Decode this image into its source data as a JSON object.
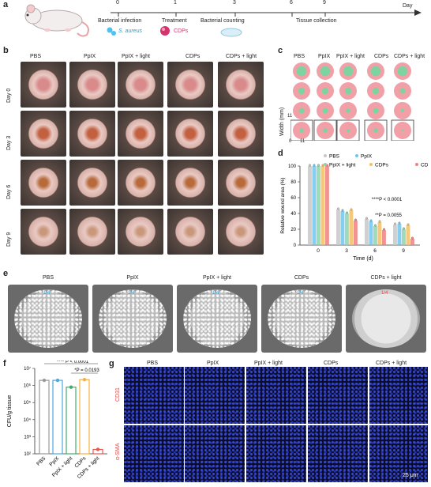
{
  "panel_a": {
    "letter": "a",
    "timeline_ticks": [
      "0",
      "1",
      "3",
      "6",
      "9"
    ],
    "axis_label": "Day",
    "events": [
      "Bacterial infection",
      "Treatment",
      "Bacterial counting",
      "Tissue collection"
    ],
    "species": "S. aureus",
    "agent": "CDPs"
  },
  "groups": [
    "PBS",
    "PpIX",
    "PpIX + light",
    "CDPs",
    "CDPs + light"
  ],
  "panel_b": {
    "letter": "b",
    "days": [
      "Day 0",
      "Day 3",
      "Day 6",
      "Day 9"
    ]
  },
  "panel_c": {
    "letter": "c",
    "ylabel": "Width (mm)",
    "tick_y": "11",
    "tick_origin": "0",
    "tick_x": "11"
  },
  "panel_d": {
    "letter": "d",
    "chart_data": {
      "type": "bar",
      "categories": [
        "0",
        "3",
        "6",
        "9"
      ],
      "series": [
        {
          "name": "PBS",
          "values": [
            100,
            45,
            33,
            26
          ]
        },
        {
          "name": "PpIX",
          "values": [
            100,
            43,
            30,
            27
          ]
        },
        {
          "name": "PpIX + light",
          "values": [
            100,
            40,
            24,
            20
          ]
        },
        {
          "name": "CDPs",
          "values": [
            100,
            44,
            29,
            25
          ]
        },
        {
          "name": "CDPs + light",
          "values": [
            100,
            31,
            19,
            8
          ]
        }
      ],
      "xlabel": "Time (d)",
      "ylabel": "Relative wound area (%)",
      "ylim": [
        0,
        100
      ],
      "yticks": [
        "0",
        "20",
        "40",
        "60",
        "80",
        "100"
      ],
      "colors": [
        "#c8c8c8",
        "#6ec6f0",
        "#8fd3b0",
        "#f5c060",
        "#f08080"
      ],
      "annotations": [
        "****P < 0.0001",
        "**P = 0.0055"
      ],
      "legend_position": "top-right"
    }
  },
  "panel_e": {
    "letter": "e",
    "dish_labels": [
      "1/4",
      "1/4",
      "1/4",
      "1/4",
      "1/4"
    ]
  },
  "panel_f": {
    "letter": "f",
    "chart_data": {
      "type": "bar",
      "categories": [
        "PBS",
        "PpIX",
        "PpIX + light",
        "CDPs",
        "CDPs + light"
      ],
      "values": [
        2000000,
        2000000,
        800000,
        2200000,
        180
      ],
      "ylabel": "CFU/g tissue",
      "yscale": "log",
      "ylim": [
        100,
        10000000
      ],
      "yticks": [
        "10²",
        "10³",
        "10⁴",
        "10⁵",
        "10⁶",
        "10⁷"
      ],
      "colors": [
        "#9a9a9a",
        "#4aa9e0",
        "#3fae6a",
        "#f5b040",
        "#e8584f"
      ],
      "annotations": [
        "**** P < 0.0001",
        "*P = 0.0193"
      ]
    }
  },
  "panel_g": {
    "letter": "g",
    "rows": [
      "CD31",
      "α-SMA"
    ],
    "scalebar": "25 μm"
  }
}
